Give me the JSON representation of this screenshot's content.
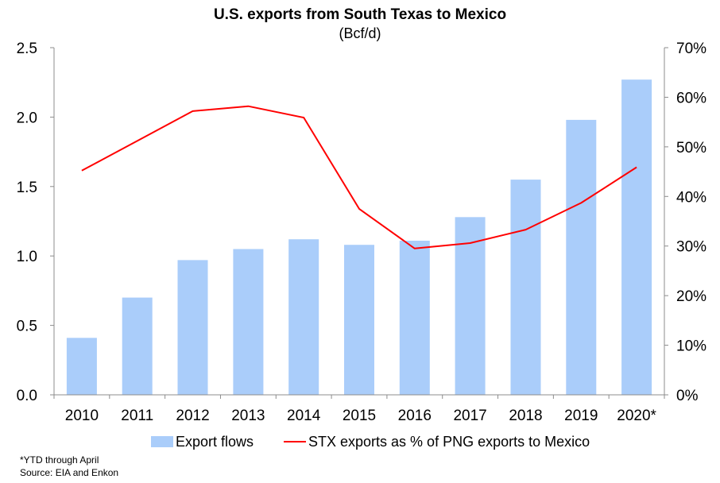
{
  "chart_data": {
    "type": "bar",
    "title": "U.S. exports from South Texas to Mexico",
    "subtitle": "(Bcf/d)",
    "categories": [
      "2010",
      "2011",
      "2012",
      "2013",
      "2014",
      "2015",
      "2016",
      "2017",
      "2018",
      "2019",
      "2020*"
    ],
    "series": [
      {
        "name": "Export flows",
        "type": "bar",
        "axis": "left",
        "color": "#aacdfa",
        "values": [
          0.41,
          0.7,
          0.97,
          1.05,
          1.12,
          1.08,
          1.11,
          1.28,
          1.55,
          1.98,
          2.27
        ]
      },
      {
        "name": "STX exports as % of PNG exports to Mexico",
        "type": "line",
        "axis": "right",
        "color": "#ff0000",
        "values": [
          45.2,
          51.2,
          57.2,
          58.2,
          55.9,
          37.5,
          29.5,
          30.6,
          33.3,
          38.7,
          45.9
        ]
      }
    ],
    "y_left": {
      "ylim": [
        0,
        2.5
      ],
      "ticks": [
        "0.0",
        "0.5",
        "1.0",
        "1.5",
        "2.0",
        "2.5"
      ]
    },
    "y_right": {
      "ylim": [
        0,
        70
      ],
      "ticks": [
        "0%",
        "10%",
        "20%",
        "30%",
        "40%",
        "50%",
        "60%",
        "70%"
      ]
    },
    "grid": false,
    "legend": "bottom",
    "footnotes": [
      "*YTD through April",
      "Source:  EIA and Enkon"
    ]
  }
}
